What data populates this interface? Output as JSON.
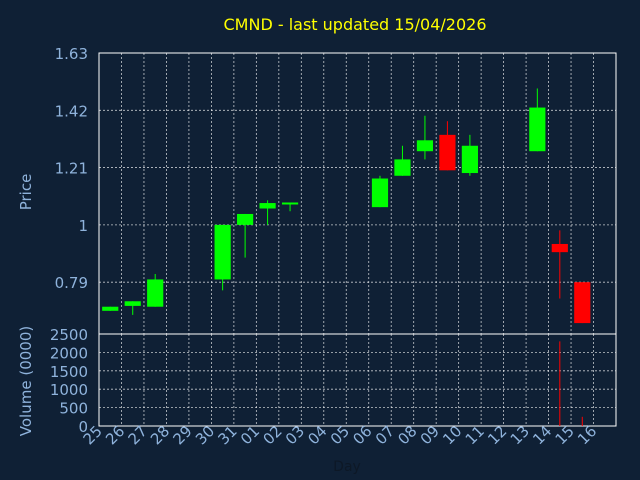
{
  "chart_data": {
    "type": "candlestick",
    "title": "CMND - last updated 15/04/2026",
    "price_ylabel": "Price",
    "volume_ylabel": "Volume (0000)",
    "xlabel": "Day",
    "x_ticks": [
      "25",
      "26",
      "27",
      "28",
      "29",
      "30",
      "31",
      "01",
      "02",
      "03",
      "04",
      "05",
      "06",
      "07",
      "08",
      "09",
      "10",
      "11",
      "12",
      "13",
      "14",
      "15",
      "16"
    ],
    "price_ylim": [
      0.6,
      1.63
    ],
    "price_ticks": [
      0.79,
      1,
      1.21,
      1.42,
      1.63
    ],
    "price_tick_labels": [
      "0.79",
      "1",
      "1.21",
      "1.42",
      "1.63"
    ],
    "volume_ylim": [
      0,
      2500
    ],
    "volume_ticks": [
      0,
      500,
      1000,
      1500,
      2000,
      2500
    ],
    "volume_tick_labels": [
      "0",
      "500",
      "1000",
      "1500",
      "2000",
      "2500"
    ],
    "up_color": "#00ff00",
    "down_color": "#ff0000",
    "candles": [
      {
        "day": "25",
        "open": 0.685,
        "close": 0.7,
        "high": 0.7,
        "low": 0.685,
        "volume": 0
      },
      {
        "day": "26",
        "open": 0.703,
        "close": 0.72,
        "high": 0.72,
        "low": 0.67,
        "volume": 0
      },
      {
        "day": "27",
        "open": 0.7,
        "close": 0.8,
        "high": 0.82,
        "low": 0.7,
        "volume": 0
      },
      {
        "day": "30",
        "open": 0.8,
        "close": 1.0,
        "high": 1.0,
        "low": 0.76,
        "volume": 0
      },
      {
        "day": "31",
        "open": 1.0,
        "close": 1.04,
        "high": 1.04,
        "low": 0.88,
        "volume": 0
      },
      {
        "day": "01",
        "open": 1.06,
        "close": 1.08,
        "high": 1.09,
        "low": 1.0,
        "volume": 0
      },
      {
        "day": "02",
        "open": 1.075,
        "close": 1.082,
        "high": 1.082,
        "low": 1.05,
        "volume": 0
      },
      {
        "day": "06",
        "open": 1.065,
        "close": 1.17,
        "high": 1.18,
        "low": 1.065,
        "volume": 0
      },
      {
        "day": "07",
        "open": 1.18,
        "close": 1.24,
        "high": 1.29,
        "low": 1.18,
        "volume": 0
      },
      {
        "day": "08",
        "open": 1.27,
        "close": 1.31,
        "high": 1.4,
        "low": 1.24,
        "volume": 0
      },
      {
        "day": "09",
        "open": 1.33,
        "close": 1.2,
        "high": 1.38,
        "low": 1.2,
        "volume": 0
      },
      {
        "day": "10",
        "open": 1.19,
        "close": 1.29,
        "high": 1.33,
        "low": 1.18,
        "volume": 0
      },
      {
        "day": "13",
        "open": 1.27,
        "close": 1.43,
        "high": 1.5,
        "low": 1.27,
        "volume": 0
      },
      {
        "day": "14",
        "open": 0.93,
        "close": 0.9,
        "high": 0.98,
        "low": 0.73,
        "volume": 2300
      },
      {
        "day": "15",
        "open": 0.79,
        "close": 0.64,
        "high": 0.79,
        "low": 0.64,
        "volume": 250
      }
    ]
  }
}
